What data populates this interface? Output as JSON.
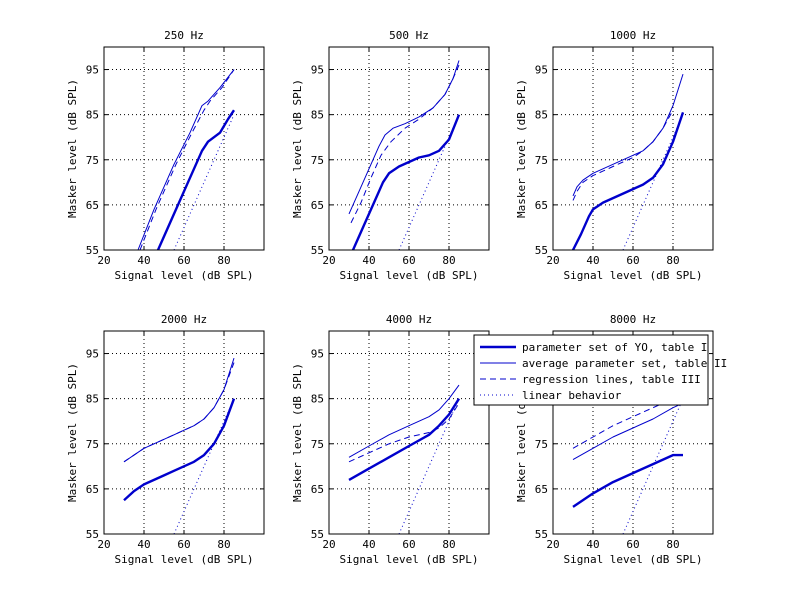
{
  "figure": {
    "background": "#ffffff"
  },
  "colors": {
    "curve": "#0000cc",
    "axis": "#000000",
    "grid": "#000000"
  },
  "legend": {
    "placement": "top-right",
    "entries": [
      {
        "label": "parameter set of YO, table I",
        "style": "thick"
      },
      {
        "label": "average parameter set, table II",
        "style": "thin"
      },
      {
        "label": "regression lines, table III",
        "style": "dashed"
      },
      {
        "label": "linear behavior",
        "style": "dotted"
      }
    ]
  },
  "chart_data": [
    {
      "type": "line",
      "title": "250 Hz",
      "xlabel": "Signal level (dB SPL)",
      "ylabel": "Masker level (dB SPL)",
      "xlim": [
        20,
        100
      ],
      "ylim": [
        55,
        100
      ],
      "xticks": [
        20,
        40,
        60,
        80
      ],
      "yticks": [
        55,
        65,
        75,
        85,
        95
      ],
      "grid": true,
      "series": [
        {
          "name": "parameter set of YO, table I",
          "style": "thick",
          "x": [
            47,
            55,
            62,
            69,
            72,
            78,
            82,
            85
          ],
          "y": [
            55,
            63,
            70,
            77,
            79,
            81,
            84,
            86
          ]
        },
        {
          "name": "average parameter set, table II",
          "style": "thin",
          "x": [
            37,
            45,
            55,
            63,
            69,
            72,
            78,
            85
          ],
          "y": [
            55,
            64,
            74,
            81,
            87,
            88,
            91,
            95
          ]
        },
        {
          "name": "regression lines, table III",
          "style": "dashed",
          "x": [
            38,
            46,
            56,
            64,
            70,
            73,
            79,
            85
          ],
          "y": [
            55,
            64,
            74,
            81,
            86,
            88,
            91,
            95
          ]
        },
        {
          "name": "linear behavior",
          "style": "dotted",
          "x": [
            55,
            85
          ],
          "y": [
            55,
            85
          ]
        }
      ]
    },
    {
      "type": "line",
      "title": "500 Hz",
      "xlabel": "Signal level (dB SPL)",
      "ylabel": "Masker level (dB SPL)",
      "xlim": [
        20,
        100
      ],
      "ylim": [
        55,
        100
      ],
      "xticks": [
        20,
        40,
        60,
        80
      ],
      "yticks": [
        55,
        65,
        75,
        85,
        95
      ],
      "grid": true,
      "series": [
        {
          "name": "parameter set of YO, table I",
          "style": "thick",
          "x": [
            32,
            38,
            43,
            47,
            50,
            55,
            60,
            65,
            70,
            75,
            80,
            85
          ],
          "y": [
            55,
            61,
            66,
            70,
            72,
            73.5,
            74.5,
            75.5,
            76,
            77,
            79.5,
            85
          ]
        },
        {
          "name": "average parameter set, table II",
          "style": "thin",
          "x": [
            30,
            35,
            40,
            45,
            48,
            52,
            58,
            65,
            72,
            78,
            82,
            85
          ],
          "y": [
            63,
            68,
            73,
            78,
            80.5,
            82,
            83,
            84.5,
            86.5,
            89.5,
            93,
            97
          ]
        },
        {
          "name": "regression lines, table III",
          "style": "dashed",
          "x": [
            31,
            36,
            41,
            46,
            51,
            58,
            65,
            72,
            78,
            82,
            85
          ],
          "y": [
            61,
            65.5,
            71,
            76,
            79,
            82,
            84,
            86.5,
            89.5,
            93,
            96
          ]
        },
        {
          "name": "linear behavior",
          "style": "dotted",
          "x": [
            55,
            85
          ],
          "y": [
            55,
            85
          ]
        }
      ]
    },
    {
      "type": "line",
      "title": "1000 Hz",
      "xlabel": "Signal level (dB SPL)",
      "ylabel": "Masker level (dB SPL)",
      "xlim": [
        20,
        100
      ],
      "ylim": [
        55,
        100
      ],
      "xticks": [
        20,
        40,
        60,
        80
      ],
      "yticks": [
        55,
        65,
        75,
        85,
        95
      ],
      "grid": true,
      "series": [
        {
          "name": "parameter set of YO, table I",
          "style": "thick",
          "x": [
            30,
            34,
            38,
            40,
            45,
            50,
            55,
            60,
            65,
            70,
            75,
            80,
            85
          ],
          "y": [
            55,
            58.5,
            62.5,
            64,
            65.5,
            66.5,
            67.5,
            68.5,
            69.5,
            71,
            74,
            79,
            85.5
          ]
        },
        {
          "name": "average parameter set, table II",
          "style": "thin",
          "x": [
            30,
            32,
            35,
            40,
            45,
            50,
            55,
            60,
            65,
            70,
            75,
            80,
            85
          ],
          "y": [
            67,
            69,
            70.5,
            72,
            73,
            74,
            75,
            76,
            77,
            79,
            82,
            87,
            94
          ]
        },
        {
          "name": "regression lines, table III",
          "style": "dashed",
          "x": [
            30,
            32,
            35,
            40,
            45,
            50,
            55,
            60,
            65,
            70,
            75,
            80
          ],
          "y": [
            66,
            68,
            70,
            71.5,
            72.5,
            73.5,
            74.5,
            75.5,
            77,
            79,
            82,
            86
          ]
        },
        {
          "name": "linear behavior",
          "style": "dotted",
          "x": [
            55,
            85
          ],
          "y": [
            55,
            85
          ]
        }
      ]
    },
    {
      "type": "line",
      "title": "2000 Hz",
      "xlabel": "Signal level (dB SPL)",
      "ylabel": "Masker level (dB SPL)",
      "xlim": [
        20,
        100
      ],
      "ylim": [
        55,
        100
      ],
      "xticks": [
        20,
        40,
        60,
        80
      ],
      "yticks": [
        55,
        65,
        75,
        85,
        95
      ],
      "grid": true,
      "series": [
        {
          "name": "parameter set of YO, table I",
          "style": "thick",
          "x": [
            30,
            35,
            40,
            45,
            50,
            55,
            60,
            65,
            70,
            75,
            80,
            85
          ],
          "y": [
            62.5,
            64.5,
            66,
            67,
            68,
            69,
            70,
            71,
            72.5,
            75,
            79,
            85
          ]
        },
        {
          "name": "average parameter set, table II",
          "style": "thin",
          "x": [
            30,
            35,
            40,
            45,
            50,
            55,
            60,
            65,
            70,
            75,
            80,
            85
          ],
          "y": [
            71,
            72.5,
            74,
            75,
            76,
            77,
            78,
            79,
            80.5,
            83,
            87,
            94
          ]
        },
        {
          "name": "regression lines, table III",
          "style": "dashed",
          "x": [
            30,
            35,
            40,
            45,
            50,
            55,
            60,
            65,
            70,
            75,
            80,
            85
          ],
          "y": [
            71,
            72.5,
            74,
            75,
            76,
            77,
            78,
            79,
            80.5,
            83,
            87,
            93
          ]
        },
        {
          "name": "linear behavior",
          "style": "dotted",
          "x": [
            55,
            85
          ],
          "y": [
            55,
            85
          ]
        }
      ]
    },
    {
      "type": "line",
      "title": "4000 Hz",
      "xlabel": "Signal level (dB SPL)",
      "ylabel": "Masker level (dB SPL)",
      "xlim": [
        20,
        100
      ],
      "ylim": [
        55,
        100
      ],
      "xticks": [
        20,
        40,
        60,
        80
      ],
      "yticks": [
        55,
        65,
        75,
        85,
        95
      ],
      "grid": true,
      "series": [
        {
          "name": "parameter set of YO, table I",
          "style": "thick",
          "x": [
            30,
            40,
            50,
            60,
            70,
            75,
            80,
            85
          ],
          "y": [
            67,
            69.5,
            72,
            74.5,
            77,
            79,
            81.5,
            85
          ]
        },
        {
          "name": "average parameter set, table II",
          "style": "thin",
          "x": [
            30,
            40,
            50,
            60,
            70,
            75,
            80,
            85
          ],
          "y": [
            72,
            74.5,
            77,
            79,
            81,
            82.5,
            85,
            88
          ]
        },
        {
          "name": "regression lines, table III",
          "style": "dashed",
          "x": [
            30,
            40,
            50,
            60,
            70,
            75,
            80,
            85
          ],
          "y": [
            71,
            73,
            75,
            76.5,
            77.5,
            78.5,
            80.5,
            84
          ]
        },
        {
          "name": "linear behavior",
          "style": "dotted",
          "x": [
            55,
            85
          ],
          "y": [
            55,
            85
          ]
        }
      ]
    },
    {
      "type": "line",
      "title": "8000 Hz",
      "xlabel": "Signal level (dB SPL)",
      "ylabel": "Masker level (dB SPL)",
      "xlim": [
        20,
        100
      ],
      "ylim": [
        55,
        100
      ],
      "xticks": [
        20,
        40,
        60,
        80
      ],
      "yticks": [
        55,
        65,
        75,
        85,
        95
      ],
      "grid": true,
      "series": [
        {
          "name": "parameter set of YO, table I",
          "style": "thick",
          "x": [
            30,
            40,
            50,
            60,
            70,
            75,
            80,
            85
          ],
          "y": [
            61,
            64,
            66.5,
            68.5,
            70.5,
            71.5,
            72.5,
            72.5
          ]
        },
        {
          "name": "average parameter set, table II",
          "style": "thin",
          "x": [
            30,
            40,
            50,
            60,
            70,
            80,
            85
          ],
          "y": [
            71.5,
            74,
            76.5,
            78.5,
            80.5,
            83,
            84
          ]
        },
        {
          "name": "regression lines, table III",
          "style": "dashed",
          "x": [
            30,
            40,
            50,
            60,
            70,
            80,
            85
          ],
          "y": [
            74,
            76.5,
            79,
            81,
            83,
            85,
            86
          ]
        },
        {
          "name": "linear behavior",
          "style": "dotted",
          "x": [
            55,
            85
          ],
          "y": [
            55,
            85
          ]
        }
      ]
    }
  ]
}
